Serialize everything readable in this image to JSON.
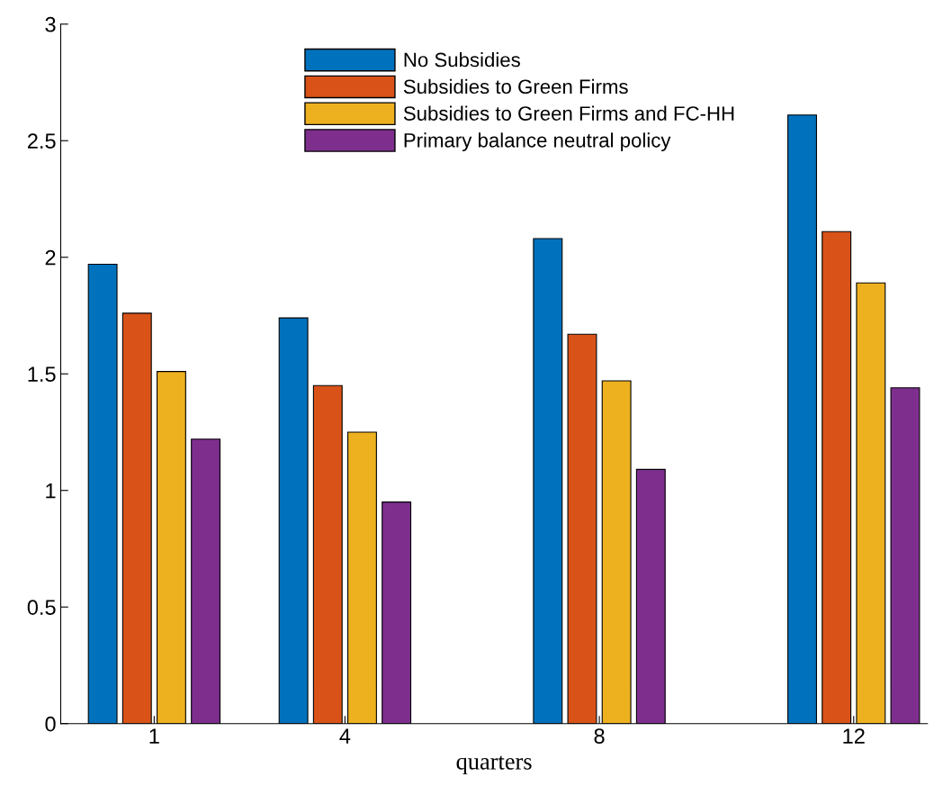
{
  "chart_data": {
    "type": "bar",
    "xlabel": "quarters",
    "x": [
      1,
      4,
      8,
      12
    ],
    "xlim": [
      -0.47,
      13.16
    ],
    "xticks": [
      1,
      4,
      8,
      12
    ],
    "ylim": [
      0,
      3
    ],
    "yticks": [
      0,
      0.5,
      1,
      1.5,
      2,
      2.5,
      3
    ],
    "series": [
      {
        "name": "No Subsidies",
        "color": "#0072bd",
        "values": [
          1.97,
          1.74,
          2.08,
          2.61
        ]
      },
      {
        "name": "Subsidies to Green Firms",
        "color": "#d95319",
        "values": [
          1.76,
          1.45,
          1.67,
          2.11
        ]
      },
      {
        "name": "Subsidies to Green Firms and FC-HH",
        "color": "#edb120",
        "values": [
          1.51,
          1.25,
          1.47,
          1.89
        ]
      },
      {
        "name": "Primary balance neutral policy",
        "color": "#7e2f8e",
        "values": [
          1.22,
          0.95,
          1.09,
          1.44
        ]
      }
    ],
    "grid": false,
    "legend": "top"
  }
}
